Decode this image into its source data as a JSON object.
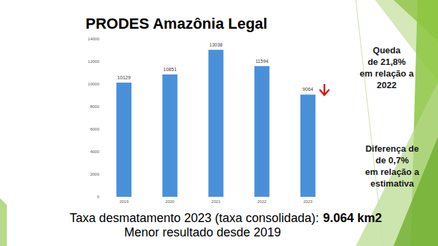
{
  "chart_data": {
    "type": "bar",
    "title": "PRODES Amazônia Legal",
    "categories": [
      "2019",
      "2020",
      "2021",
      "2022",
      "2023"
    ],
    "values": [
      10129,
      10851,
      13038,
      11594,
      9064
    ],
    "color": "#4a90d9",
    "ylim": [
      0,
      14000
    ],
    "yticks": [
      0,
      2000,
      4000,
      6000,
      8000,
      10000,
      12000,
      14000
    ],
    "grid": false,
    "data_labels": true,
    "annotations": [
      [
        "Queda",
        "de 21,8%",
        "em relação a",
        "2022"
      ],
      [
        "Diferença de",
        "de 0,7%",
        "em relação a",
        "estimativa"
      ]
    ],
    "footer": {
      "text": "Taxa desmatamento 2023 (taxa consolidada):",
      "highlight": "9.064 km2",
      "subtext": "Menor resultado desde 2019"
    }
  }
}
